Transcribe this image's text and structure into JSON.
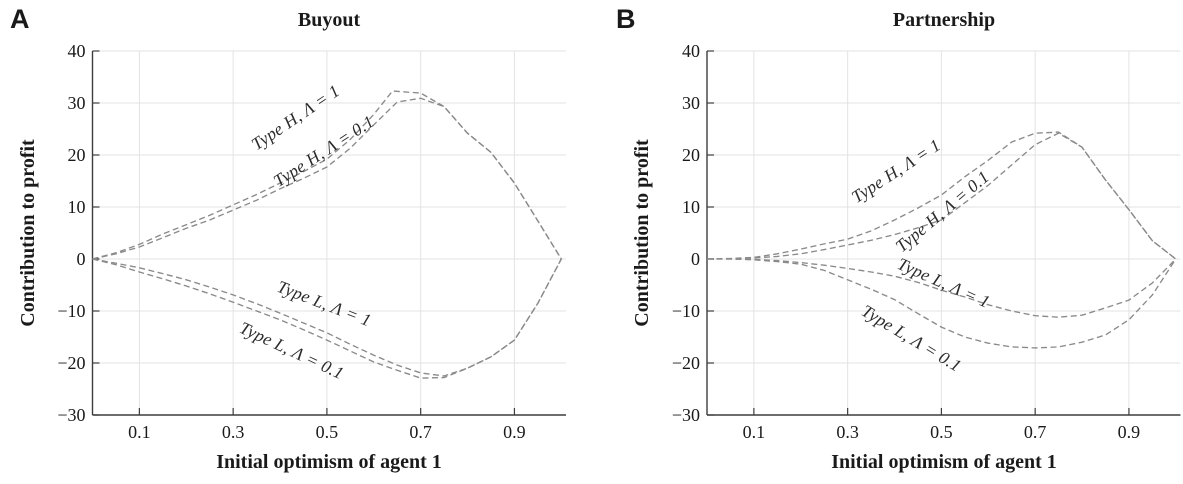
{
  "styles": {
    "curve_color": "#8a8a8a",
    "grid_color": "#e3e3e3",
    "axis_color": "#3d3d3d",
    "tick_text_color": "#1a1a1a",
    "annotation_color": "#2b2b2b",
    "background": "#ffffff"
  },
  "chart_data": [
    {
      "type": "line",
      "panel_letter": "A",
      "title": "Buyout",
      "xlabel": "Initial optimism of agent 1",
      "ylabel": "Contribution to profit",
      "x_ticks": [
        0.1,
        0.3,
        0.5,
        0.7,
        0.9
      ],
      "y_ticks": [
        -30,
        -20,
        -10,
        0,
        10,
        20,
        30,
        40
      ],
      "xlim": [
        0,
        1.01
      ],
      "ylim": [
        -30,
        40
      ],
      "grid": true,
      "line_style": "dashed",
      "series": [
        {
          "name": "Type H, Λ = 1",
          "annotation": {
            "x": 0.44,
            "y": 26.3,
            "rotation": -34
          },
          "points": [
            [
              0,
              0
            ],
            [
              0.05,
              1.2
            ],
            [
              0.1,
              2.8
            ],
            [
              0.15,
              4.8
            ],
            [
              0.2,
              6.6
            ],
            [
              0.25,
              8.4
            ],
            [
              0.3,
              10.4
            ],
            [
              0.35,
              12.4
            ],
            [
              0.4,
              14.6
            ],
            [
              0.45,
              16.8
            ],
            [
              0.5,
              19.2
            ],
            [
              0.55,
              23
            ],
            [
              0.6,
              27.8
            ],
            [
              0.64,
              32.3
            ],
            [
              0.7,
              31.9
            ],
            [
              0.75,
              29.3
            ],
            [
              0.8,
              24.2
            ],
            [
              0.85,
              20.5
            ],
            [
              0.9,
              14.6
            ],
            [
              0.95,
              7.3
            ],
            [
              1,
              0
            ]
          ]
        },
        {
          "name": "Type H, Λ = 0.1",
          "annotation": {
            "x": 0.5,
            "y": 19.8,
            "rotation": -33
          },
          "points": [
            [
              0,
              0
            ],
            [
              0.05,
              1
            ],
            [
              0.1,
              2.3
            ],
            [
              0.15,
              4.1
            ],
            [
              0.2,
              5.9
            ],
            [
              0.25,
              7.5
            ],
            [
              0.3,
              9.4
            ],
            [
              0.35,
              11.3
            ],
            [
              0.4,
              13.5
            ],
            [
              0.45,
              15.5
            ],
            [
              0.5,
              17.7
            ],
            [
              0.55,
              21.3
            ],
            [
              0.6,
              25.8
            ],
            [
              0.65,
              30.2
            ],
            [
              0.7,
              30.9
            ],
            [
              0.75,
              29.3
            ],
            [
              0.8,
              24.2
            ],
            [
              0.85,
              20.5
            ],
            [
              0.9,
              14.6
            ],
            [
              0.95,
              7.3
            ],
            [
              1,
              0
            ]
          ]
        },
        {
          "name": "Type L, Λ = 1",
          "annotation": {
            "x": 0.49,
            "y": -9.6,
            "rotation": 21
          },
          "points": [
            [
              0,
              0
            ],
            [
              0.05,
              -0.8
            ],
            [
              0.1,
              -1.7
            ],
            [
              0.15,
              -2.8
            ],
            [
              0.2,
              -4
            ],
            [
              0.25,
              -5.4
            ],
            [
              0.3,
              -6.9
            ],
            [
              0.35,
              -8.6
            ],
            [
              0.4,
              -10.4
            ],
            [
              0.45,
              -12.3
            ],
            [
              0.5,
              -14.2
            ],
            [
              0.55,
              -16.4
            ],
            [
              0.6,
              -18.5
            ],
            [
              0.65,
              -20.4
            ],
            [
              0.7,
              -21.9
            ],
            [
              0.75,
              -22.5
            ],
            [
              0.8,
              -21
            ],
            [
              0.85,
              -18.8
            ],
            [
              0.9,
              -15.6
            ],
            [
              0.95,
              -8.5
            ],
            [
              1,
              0
            ]
          ]
        },
        {
          "name": "Type L, Λ = 0.1",
          "annotation": {
            "x": 0.42,
            "y": -18.6,
            "rotation": 25
          },
          "points": [
            [
              0,
              0
            ],
            [
              0.05,
              -1.1
            ],
            [
              0.1,
              -2.5
            ],
            [
              0.15,
              -3.8
            ],
            [
              0.2,
              -5.2
            ],
            [
              0.25,
              -6.7
            ],
            [
              0.3,
              -8.3
            ],
            [
              0.35,
              -10
            ],
            [
              0.4,
              -11.7
            ],
            [
              0.45,
              -13.6
            ],
            [
              0.5,
              -15.6
            ],
            [
              0.55,
              -17.7
            ],
            [
              0.6,
              -19.8
            ],
            [
              0.65,
              -21.4
            ],
            [
              0.7,
              -22.9
            ],
            [
              0.75,
              -22.8
            ],
            [
              0.8,
              -21
            ],
            [
              0.85,
              -18.8
            ],
            [
              0.9,
              -15.6
            ],
            [
              0.95,
              -8.5
            ],
            [
              1,
              0
            ]
          ]
        }
      ]
    },
    {
      "type": "line",
      "panel_letter": "B",
      "title": "Partnership",
      "xlabel": "Initial optimism of agent 1",
      "ylabel": "Contribution to profit",
      "x_ticks": [
        0.1,
        0.3,
        0.5,
        0.7,
        0.9
      ],
      "y_ticks": [
        -30,
        -20,
        -10,
        0,
        10,
        20,
        30,
        40
      ],
      "xlim": [
        0,
        1.01
      ],
      "ylim": [
        -30,
        40
      ],
      "grid": true,
      "line_style": "dashed",
      "series": [
        {
          "name": "Type H, Λ = 1",
          "annotation": {
            "x": 0.41,
            "y": 16.0,
            "rotation": -33
          },
          "points": [
            [
              0,
              0
            ],
            [
              0.05,
              0.1
            ],
            [
              0.1,
              0.3
            ],
            [
              0.15,
              1
            ],
            [
              0.2,
              1.9
            ],
            [
              0.25,
              2.9
            ],
            [
              0.3,
              3.8
            ],
            [
              0.35,
              5.4
            ],
            [
              0.4,
              7.5
            ],
            [
              0.45,
              9.8
            ],
            [
              0.5,
              12.3
            ],
            [
              0.55,
              15.8
            ],
            [
              0.6,
              19
            ],
            [
              0.65,
              22.5
            ],
            [
              0.7,
              24.2
            ],
            [
              0.75,
              24.4
            ],
            [
              0.8,
              21.5
            ],
            [
              0.85,
              15.2
            ],
            [
              0.9,
              9.5
            ],
            [
              0.95,
              3.5
            ],
            [
              1,
              0
            ]
          ]
        },
        {
          "name": "Type H, Λ = 0.1",
          "annotation": {
            "x": 0.51,
            "y": 8.3,
            "rotation": -40
          },
          "points": [
            [
              0,
              0
            ],
            [
              0.05,
              0.05
            ],
            [
              0.1,
              0.2
            ],
            [
              0.15,
              0.5
            ],
            [
              0.2,
              1
            ],
            [
              0.25,
              1.8
            ],
            [
              0.3,
              2.7
            ],
            [
              0.35,
              3.6
            ],
            [
              0.4,
              4.7
            ],
            [
              0.45,
              6
            ],
            [
              0.5,
              7.5
            ],
            [
              0.55,
              10.8
            ],
            [
              0.6,
              14.2
            ],
            [
              0.65,
              18.1
            ],
            [
              0.7,
              22
            ],
            [
              0.75,
              24.2
            ],
            [
              0.8,
              21.5
            ],
            [
              0.85,
              15.2
            ],
            [
              0.9,
              9.5
            ],
            [
              0.95,
              3.5
            ],
            [
              1,
              0
            ]
          ]
        },
        {
          "name": "Type L, Λ = 1",
          "annotation": {
            "x": 0.5,
            "y": -5.6,
            "rotation": 24
          },
          "points": [
            [
              0,
              0
            ],
            [
              0.05,
              0
            ],
            [
              0.1,
              -0.1
            ],
            [
              0.15,
              -0.3
            ],
            [
              0.2,
              -0.7
            ],
            [
              0.25,
              -1.2
            ],
            [
              0.3,
              -1.8
            ],
            [
              0.35,
              -2.5
            ],
            [
              0.4,
              -3.3
            ],
            [
              0.45,
              -4.5
            ],
            [
              0.5,
              -6
            ],
            [
              0.55,
              -7.3
            ],
            [
              0.6,
              -8.8
            ],
            [
              0.65,
              -10
            ],
            [
              0.7,
              -10.9
            ],
            [
              0.75,
              -11.2
            ],
            [
              0.8,
              -10.8
            ],
            [
              0.85,
              -9.4
            ],
            [
              0.9,
              -7.9
            ],
            [
              0.95,
              -4.6
            ],
            [
              1,
              0
            ]
          ]
        },
        {
          "name": "Type L, Λ = 0.1",
          "annotation": {
            "x": 0.43,
            "y": -16.2,
            "rotation": 31
          },
          "points": [
            [
              0,
              0
            ],
            [
              0.05,
              0
            ],
            [
              0.1,
              -0.15
            ],
            [
              0.15,
              -0.5
            ],
            [
              0.2,
              -1
            ],
            [
              0.25,
              -2.2
            ],
            [
              0.3,
              -4
            ],
            [
              0.35,
              -5.8
            ],
            [
              0.4,
              -7.8
            ],
            [
              0.45,
              -10.5
            ],
            [
              0.5,
              -13.1
            ],
            [
              0.55,
              -15
            ],
            [
              0.6,
              -16.2
            ],
            [
              0.65,
              -16.9
            ],
            [
              0.7,
              -17.1
            ],
            [
              0.75,
              -16.9
            ],
            [
              0.8,
              -16
            ],
            [
              0.85,
              -14.6
            ],
            [
              0.9,
              -11.7
            ],
            [
              0.95,
              -6.9
            ],
            [
              1,
              0
            ]
          ]
        }
      ]
    }
  ]
}
